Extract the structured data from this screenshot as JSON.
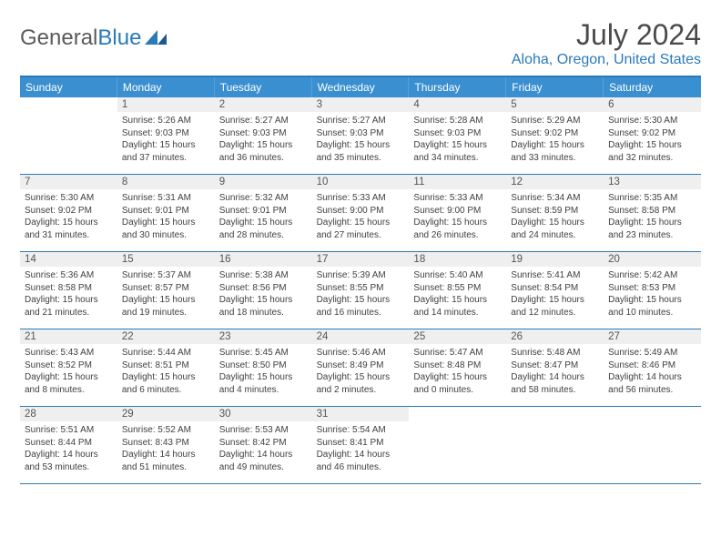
{
  "brand": {
    "part1": "General",
    "part2": "Blue"
  },
  "title": "July 2024",
  "location": "Aloha, Oregon, United States",
  "colors": {
    "accent": "#2a7ab8",
    "header_bg": "#3a8fd0",
    "daynum_bg": "#efefef"
  },
  "weekdays": [
    "Sunday",
    "Monday",
    "Tuesday",
    "Wednesday",
    "Thursday",
    "Friday",
    "Saturday"
  ],
  "weeks": [
    [
      {
        "empty": true
      },
      {
        "n": "1",
        "sunrise": "5:26 AM",
        "sunset": "9:03 PM",
        "daylight": "15 hours and 37 minutes."
      },
      {
        "n": "2",
        "sunrise": "5:27 AM",
        "sunset": "9:03 PM",
        "daylight": "15 hours and 36 minutes."
      },
      {
        "n": "3",
        "sunrise": "5:27 AM",
        "sunset": "9:03 PM",
        "daylight": "15 hours and 35 minutes."
      },
      {
        "n": "4",
        "sunrise": "5:28 AM",
        "sunset": "9:03 PM",
        "daylight": "15 hours and 34 minutes."
      },
      {
        "n": "5",
        "sunrise": "5:29 AM",
        "sunset": "9:02 PM",
        "daylight": "15 hours and 33 minutes."
      },
      {
        "n": "6",
        "sunrise": "5:30 AM",
        "sunset": "9:02 PM",
        "daylight": "15 hours and 32 minutes."
      }
    ],
    [
      {
        "n": "7",
        "sunrise": "5:30 AM",
        "sunset": "9:02 PM",
        "daylight": "15 hours and 31 minutes."
      },
      {
        "n": "8",
        "sunrise": "5:31 AM",
        "sunset": "9:01 PM",
        "daylight": "15 hours and 30 minutes."
      },
      {
        "n": "9",
        "sunrise": "5:32 AM",
        "sunset": "9:01 PM",
        "daylight": "15 hours and 28 minutes."
      },
      {
        "n": "10",
        "sunrise": "5:33 AM",
        "sunset": "9:00 PM",
        "daylight": "15 hours and 27 minutes."
      },
      {
        "n": "11",
        "sunrise": "5:33 AM",
        "sunset": "9:00 PM",
        "daylight": "15 hours and 26 minutes."
      },
      {
        "n": "12",
        "sunrise": "5:34 AM",
        "sunset": "8:59 PM",
        "daylight": "15 hours and 24 minutes."
      },
      {
        "n": "13",
        "sunrise": "5:35 AM",
        "sunset": "8:58 PM",
        "daylight": "15 hours and 23 minutes."
      }
    ],
    [
      {
        "n": "14",
        "sunrise": "5:36 AM",
        "sunset": "8:58 PM",
        "daylight": "15 hours and 21 minutes."
      },
      {
        "n": "15",
        "sunrise": "5:37 AM",
        "sunset": "8:57 PM",
        "daylight": "15 hours and 19 minutes."
      },
      {
        "n": "16",
        "sunrise": "5:38 AM",
        "sunset": "8:56 PM",
        "daylight": "15 hours and 18 minutes."
      },
      {
        "n": "17",
        "sunrise": "5:39 AM",
        "sunset": "8:55 PM",
        "daylight": "15 hours and 16 minutes."
      },
      {
        "n": "18",
        "sunrise": "5:40 AM",
        "sunset": "8:55 PM",
        "daylight": "15 hours and 14 minutes."
      },
      {
        "n": "19",
        "sunrise": "5:41 AM",
        "sunset": "8:54 PM",
        "daylight": "15 hours and 12 minutes."
      },
      {
        "n": "20",
        "sunrise": "5:42 AM",
        "sunset": "8:53 PM",
        "daylight": "15 hours and 10 minutes."
      }
    ],
    [
      {
        "n": "21",
        "sunrise": "5:43 AM",
        "sunset": "8:52 PM",
        "daylight": "15 hours and 8 minutes."
      },
      {
        "n": "22",
        "sunrise": "5:44 AM",
        "sunset": "8:51 PM",
        "daylight": "15 hours and 6 minutes."
      },
      {
        "n": "23",
        "sunrise": "5:45 AM",
        "sunset": "8:50 PM",
        "daylight": "15 hours and 4 minutes."
      },
      {
        "n": "24",
        "sunrise": "5:46 AM",
        "sunset": "8:49 PM",
        "daylight": "15 hours and 2 minutes."
      },
      {
        "n": "25",
        "sunrise": "5:47 AM",
        "sunset": "8:48 PM",
        "daylight": "15 hours and 0 minutes."
      },
      {
        "n": "26",
        "sunrise": "5:48 AM",
        "sunset": "8:47 PM",
        "daylight": "14 hours and 58 minutes."
      },
      {
        "n": "27",
        "sunrise": "5:49 AM",
        "sunset": "8:46 PM",
        "daylight": "14 hours and 56 minutes."
      }
    ],
    [
      {
        "n": "28",
        "sunrise": "5:51 AM",
        "sunset": "8:44 PM",
        "daylight": "14 hours and 53 minutes."
      },
      {
        "n": "29",
        "sunrise": "5:52 AM",
        "sunset": "8:43 PM",
        "daylight": "14 hours and 51 minutes."
      },
      {
        "n": "30",
        "sunrise": "5:53 AM",
        "sunset": "8:42 PM",
        "daylight": "14 hours and 49 minutes."
      },
      {
        "n": "31",
        "sunrise": "5:54 AM",
        "sunset": "8:41 PM",
        "daylight": "14 hours and 46 minutes."
      },
      {
        "empty": true
      },
      {
        "empty": true
      },
      {
        "empty": true
      }
    ]
  ],
  "labels": {
    "sunrise": "Sunrise:",
    "sunset": "Sunset:",
    "daylight": "Daylight:"
  }
}
